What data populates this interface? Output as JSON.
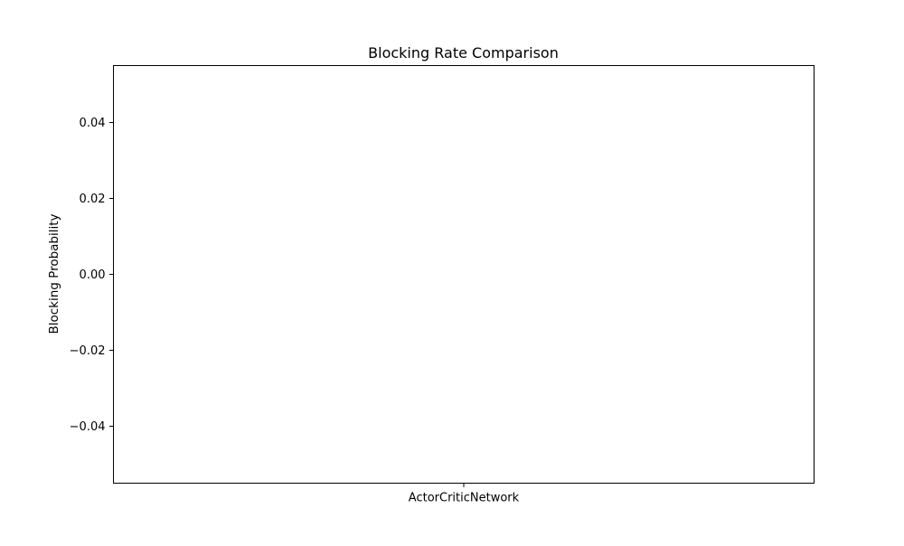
{
  "chart_data": {
    "type": "bar",
    "title": "Blocking Rate Comparison",
    "xlabel": "",
    "ylabel": "Blocking Probability",
    "categories": [
      "ActorCriticNetwork"
    ],
    "values": [
      0.0
    ],
    "ylim": [
      -0.055,
      0.055
    ],
    "yticks": [
      0.04,
      0.02,
      0.0,
      -0.02,
      -0.04
    ],
    "ytick_labels": [
      "0.04",
      "0.02",
      "0.00",
      "−0.02",
      "−0.04"
    ],
    "grid": false,
    "legend": "none"
  }
}
